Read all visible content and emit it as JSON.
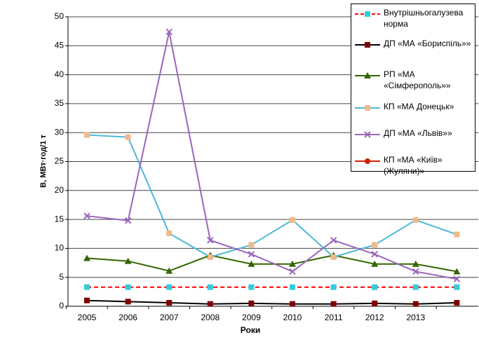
{
  "chart_data": {
    "type": "line",
    "x_label": "Роки",
    "y_label": "В, МВт·год/1 т",
    "categories": [
      "2005",
      "2006",
      "2007",
      "2008",
      "2009",
      "2010",
      "2011",
      "2012",
      "2013",
      null
    ],
    "ylim": [
      0,
      50
    ],
    "yticks": [
      0,
      5,
      10,
      15,
      20,
      25,
      30,
      35,
      40,
      45,
      50
    ],
    "grid": true,
    "series": [
      {
        "name": "Внутрішньогалузева норма",
        "color": "#ff0000",
        "marker_color": "#33ccdd",
        "marker": "square",
        "dash": true,
        "values": [
          3.3,
          3.3,
          3.3,
          3.3,
          3.3,
          3.3,
          3.3,
          3.3,
          3.3,
          3.3
        ]
      },
      {
        "name": "ДП «МА «Бориспіль»»",
        "color": "#000000",
        "marker_color": "#800000",
        "marker": "square",
        "dash": false,
        "values": [
          1.0,
          0.8,
          0.6,
          0.4,
          0.5,
          0.4,
          0.4,
          0.5,
          0.4,
          0.6
        ]
      },
      {
        "name": "РП «МА «Сімферополь»»",
        "color": "#336600",
        "marker_color": "#336600",
        "marker": "triangle",
        "dash": false,
        "values": [
          8.3,
          7.8,
          6.1,
          8.8,
          7.3,
          7.3,
          8.8,
          7.3,
          7.3,
          6.0
        ]
      },
      {
        "name": "КП «МА Донецьк»",
        "color": "#4db8d8",
        "marker_color": "#f0b98a",
        "marker": "square",
        "dash": false,
        "values": [
          29.6,
          29.2,
          12.6,
          8.5,
          10.6,
          14.9,
          8.5,
          10.6,
          14.9,
          12.4
        ]
      },
      {
        "name": "ДП «МА «Львів»»",
        "color": "#9966bb",
        "marker_color": "#9966bb",
        "marker": "x",
        "dash": false,
        "values": [
          15.6,
          14.8,
          47.4,
          11.4,
          9.0,
          6.0,
          11.4,
          9.0,
          6.0,
          4.7
        ]
      },
      {
        "name": "КП «МА «Київ» (Жуляни)»",
        "color": "#cc2200",
        "marker_color": "#cc2200",
        "marker": "circle",
        "dash": false,
        "values": [
          null,
          null,
          null,
          null,
          null,
          null,
          null,
          null,
          null,
          null
        ]
      }
    ]
  }
}
